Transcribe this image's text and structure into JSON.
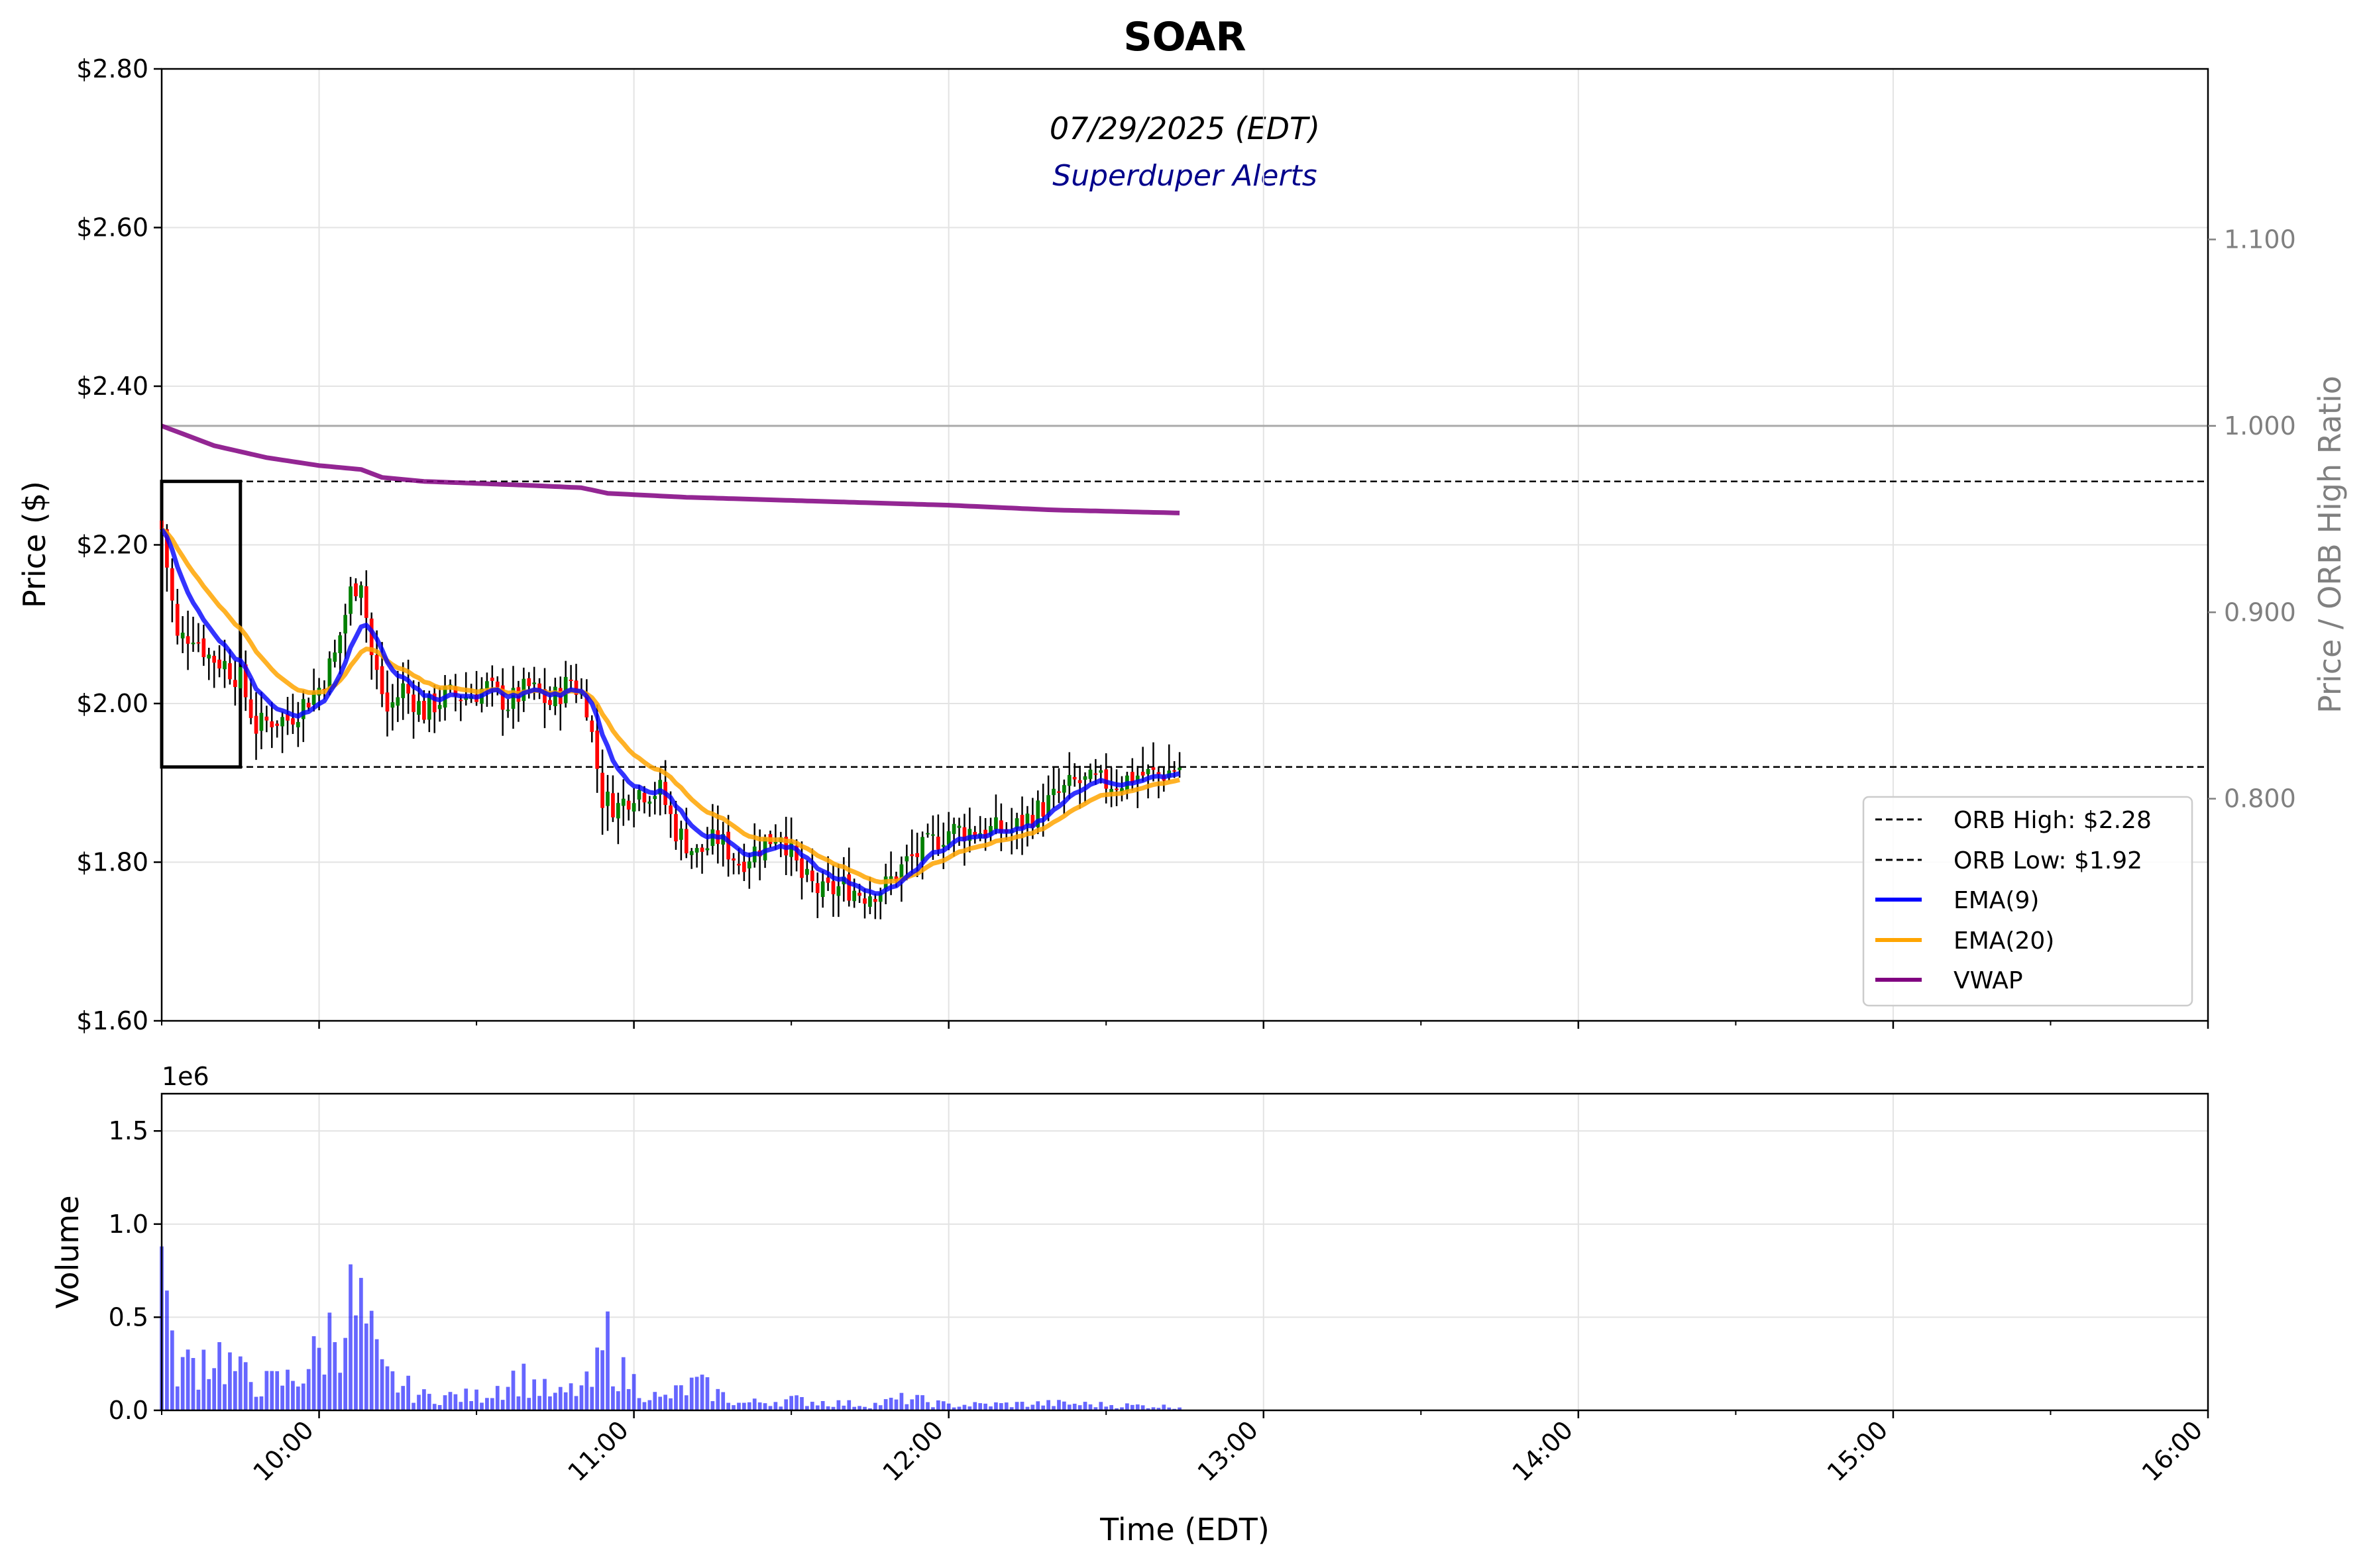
{
  "chart_data": {
    "type": "candlestick",
    "title": "SOAR",
    "subtitle": "07/29/2025 (EDT)",
    "brand": "Superduper Alerts",
    "price_panel": {
      "ylabel": "Price ($)",
      "ylim": [
        1.6,
        2.8
      ],
      "yticks": [
        1.6,
        1.8,
        2.0,
        2.2,
        2.4,
        2.6,
        2.8
      ],
      "ytick_labels": [
        "$1.60",
        "$1.80",
        "$2.00",
        "$2.20",
        "$2.40",
        "$2.60",
        "$2.80"
      ],
      "right_axis": {
        "label": "Price / ORB High Ratio",
        "ticks": [
          0.8,
          0.9,
          1.0,
          1.1
        ],
        "tick_labels": [
          "0.800",
          "0.900",
          "1.000",
          "1.100"
        ],
        "ratio_base": 2.35
      },
      "orb_high": 2.28,
      "orb_low": 1.92,
      "orb_box": {
        "start": "09:30",
        "end": "09:45"
      },
      "reference_line": 2.35,
      "legend": [
        "ORB High: $2.28",
        "ORB Low: $1.92",
        "EMA(9)",
        "EMA(20)",
        "VWAP"
      ],
      "legend_position": "lower-right",
      "grid": true
    },
    "volume_panel": {
      "ylabel": "Volume",
      "multiplier": "1e6",
      "ylim": [
        0,
        1.7
      ],
      "yticks": [
        0.0,
        0.5,
        1.0,
        1.5
      ],
      "ytick_labels": [
        "0.0",
        "0.5",
        "1.0",
        "1.5"
      ]
    },
    "xaxis": {
      "label": "Time (EDT)",
      "range": [
        "09:30",
        "16:00"
      ],
      "ticks": [
        "10:00",
        "11:00",
        "12:00",
        "13:00",
        "14:00",
        "15:00",
        "16:00"
      ]
    },
    "price_path": [
      [
        "09:30",
        2.22
      ],
      [
        "09:33",
        2.08
      ],
      [
        "09:36",
        2.09
      ],
      [
        "09:39",
        2.06
      ],
      [
        "09:42",
        2.05
      ],
      [
        "09:45",
        2.03
      ],
      [
        "09:48",
        1.97
      ],
      [
        "09:51",
        1.98
      ],
      [
        "09:54",
        1.98
      ],
      [
        "09:57",
        2.0
      ],
      [
        "10:00",
        2.02
      ],
      [
        "10:03",
        2.06
      ],
      [
        "10:06",
        2.14
      ],
      [
        "10:08",
        2.16
      ],
      [
        "10:10",
        2.06
      ],
      [
        "10:13",
        1.99
      ],
      [
        "10:16",
        2.02
      ],
      [
        "10:20",
        1.99
      ],
      [
        "10:24",
        2.01
      ],
      [
        "10:28",
        2.01
      ],
      [
        "10:32",
        2.02
      ],
      [
        "10:36",
        2.0
      ],
      [
        "10:40",
        2.02
      ],
      [
        "10:44",
        2.0
      ],
      [
        "10:48",
        2.03
      ],
      [
        "10:51",
        2.0
      ],
      [
        "10:54",
        1.88
      ],
      [
        "10:57",
        1.87
      ],
      [
        "11:00",
        1.89
      ],
      [
        "11:05",
        1.89
      ],
      [
        "11:08",
        1.84
      ],
      [
        "11:12",
        1.81
      ],
      [
        "11:16",
        1.83
      ],
      [
        "11:20",
        1.8
      ],
      [
        "11:24",
        1.82
      ],
      [
        "11:28",
        1.84
      ],
      [
        "11:32",
        1.78
      ],
      [
        "11:36",
        1.76
      ],
      [
        "11:40",
        1.77
      ],
      [
        "11:44",
        1.76
      ],
      [
        "11:48",
        1.77
      ],
      [
        "11:52",
        1.8
      ],
      [
        "11:56",
        1.82
      ],
      [
        "12:00",
        1.84
      ],
      [
        "12:04",
        1.84
      ],
      [
        "12:08",
        1.84
      ],
      [
        "12:12",
        1.84
      ],
      [
        "12:16",
        1.86
      ],
      [
        "12:20",
        1.88
      ],
      [
        "12:24",
        1.9
      ],
      [
        "12:28",
        1.9
      ],
      [
        "12:32",
        1.9
      ],
      [
        "12:36",
        1.91
      ],
      [
        "12:40",
        1.91
      ],
      [
        "12:44",
        1.92
      ]
    ],
    "vwap_path": [
      [
        "09:30",
        2.35
      ],
      [
        "09:40",
        2.325
      ],
      [
        "09:50",
        2.31
      ],
      [
        "10:00",
        2.3
      ],
      [
        "10:08",
        2.295
      ],
      [
        "10:12",
        2.285
      ],
      [
        "10:20",
        2.28
      ],
      [
        "10:40",
        2.275
      ],
      [
        "10:50",
        2.272
      ],
      [
        "10:55",
        2.265
      ],
      [
        "11:10",
        2.26
      ],
      [
        "11:30",
        2.256
      ],
      [
        "12:00",
        2.25
      ],
      [
        "12:20",
        2.244
      ],
      [
        "12:45",
        2.24
      ]
    ],
    "volume_anchors": [
      [
        "09:30",
        0.88
      ],
      [
        "09:32",
        0.3
      ],
      [
        "09:35",
        0.25
      ],
      [
        "09:40",
        0.35
      ],
      [
        "09:45",
        0.2
      ],
      [
        "09:50",
        0.15
      ],
      [
        "09:55",
        0.18
      ],
      [
        "10:00",
        0.32
      ],
      [
        "10:05",
        0.6
      ],
      [
        "10:08",
        0.55
      ],
      [
        "10:12",
        0.2
      ],
      [
        "10:20",
        0.08
      ],
      [
        "10:30",
        0.08
      ],
      [
        "10:38",
        0.2
      ],
      [
        "10:45",
        0.08
      ],
      [
        "10:52",
        0.15
      ],
      [
        "10:55",
        0.4
      ],
      [
        "10:58",
        0.2
      ],
      [
        "11:05",
        0.06
      ],
      [
        "11:12",
        0.15
      ],
      [
        "11:20",
        0.04
      ],
      [
        "11:30",
        0.06
      ],
      [
        "11:45",
        0.03
      ],
      [
        "11:52",
        0.07
      ],
      [
        "12:00",
        0.03
      ],
      [
        "12:20",
        0.04
      ],
      [
        "12:45",
        0.02
      ]
    ],
    "ema_periods": [
      9,
      20
    ],
    "colors": {
      "up_candle": "#008000",
      "down_candle": "#ff0000",
      "wick": "#000000",
      "ema9": "#0000ff",
      "ema20": "#ffa500",
      "vwap": "#800080",
      "volume": "#0000ff",
      "orb_lines": "#000000",
      "reference_line": "#aaaaaa",
      "brand": "#00008b"
    }
  }
}
